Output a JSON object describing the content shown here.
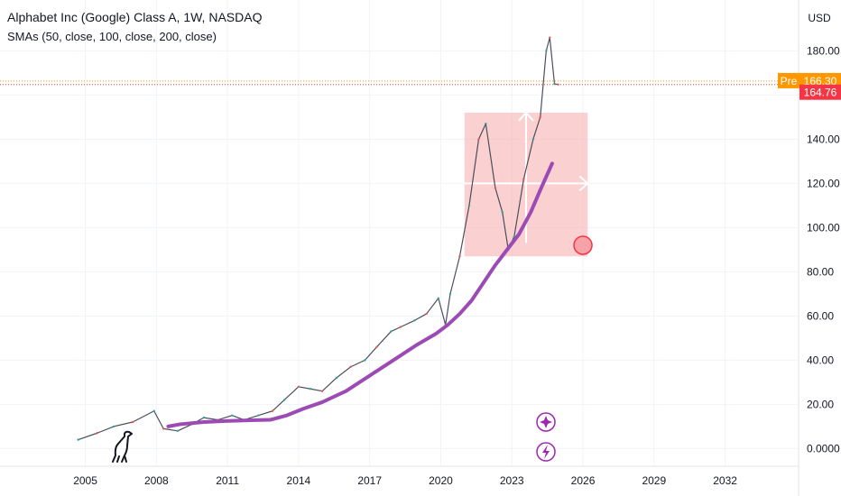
{
  "header": {
    "title": "Alphabet Inc (Google) Class A, 1W, NASDAQ",
    "subtitle": "SMAs (50, close, 100, close, 200, close)"
  },
  "price_axis": {
    "currency": "USD"
  },
  "tags": {
    "pre_label": "Pre",
    "pre_value": "166.30",
    "last_value": "164.76",
    "pre_color": "#ff9800",
    "last_color": "#f23645"
  },
  "icons": [
    "dino-logo-icon",
    "sparkle-event-icon",
    "lightning-event-icon"
  ],
  "colors": {
    "sma": "#9c4bb5",
    "box": "#f7b7b7",
    "up": "#26a69a",
    "down": "#ef5350"
  },
  "chart_data": {
    "type": "line",
    "title": "Alphabet Inc (Google) Class A, 1W, NASDAQ",
    "x_ticks": [
      "2005",
      "2008",
      "2011",
      "2014",
      "2017",
      "2020",
      "2023",
      "2026",
      "2029",
      "2032"
    ],
    "y_ticks": [
      "0.0000",
      "20.00",
      "40.00",
      "60.00",
      "80.00",
      "100.00",
      "120.00",
      "140.00",
      "160.00",
      "180.00"
    ],
    "ylim": [
      -8,
      203
    ],
    "xlim": [
      2001.4,
      2035.1
    ],
    "grid": true,
    "series": [
      {
        "name": "SMAs (50, close, 100, close, 200, close)",
        "color": "#9c4bb5",
        "x": [
          2008.5,
          2009,
          2010,
          2011,
          2012,
          2012.8,
          2013.5,
          2014.2,
          2015,
          2016,
          2017,
          2018,
          2019,
          2019.8,
          2020.3,
          2020.8,
          2021.3,
          2021.8,
          2022.3,
          2022.8,
          2023.3,
          2023.8,
          2024.2,
          2024.7
        ],
        "values": [
          10,
          11,
          12,
          12.5,
          12.8,
          13,
          15,
          18,
          21,
          26,
          33,
          40,
          47,
          52,
          56,
          61,
          67,
          75,
          83,
          90,
          97,
          107,
          117,
          129
        ]
      },
      {
        "name": "Price",
        "color": "#131722",
        "x": [
          2004.7,
          2005.5,
          2006.2,
          2007,
          2007.9,
          2008.3,
          2008.9,
          2009.5,
          2010,
          2010.6,
          2011.2,
          2011.7,
          2012.3,
          2012.9,
          2013.4,
          2014,
          2014.5,
          2015,
          2015.6,
          2016.2,
          2016.8,
          2017.3,
          2017.9,
          2018.3,
          2018.9,
          2019.4,
          2019.9,
          2020.2,
          2020.4,
          2020.8,
          2021.2,
          2021.6,
          2021.9,
          2022.3,
          2022.6,
          2022.85,
          2023.1,
          2023.5,
          2023.9,
          2024.2,
          2024.45,
          2024.6,
          2024.8,
          2024.95
        ],
        "values": [
          4,
          7,
          10,
          12,
          17,
          9,
          8,
          11,
          14,
          13,
          15,
          13,
          15,
          17,
          22,
          28,
          27,
          26,
          32,
          37,
          40,
          46,
          53,
          55,
          58,
          61,
          68,
          56,
          70,
          87,
          110,
          140,
          147,
          118,
          107,
          90,
          96,
          122,
          140,
          150,
          180,
          186,
          165,
          164.76
        ]
      }
    ],
    "annotations": {
      "box": {
        "x": [
          2021.0,
          2026.2
        ],
        "y": [
          87,
          152
        ]
      },
      "arrow_up": {
        "x": 2023.6,
        "y": [
          93,
          152
        ]
      },
      "arrow_right": {
        "x": [
          2021.0,
          2026.2
        ],
        "y": 120
      },
      "circle": {
        "x": 2026.0,
        "y": 92
      },
      "price_lines": [
        166.3,
        164.76
      ]
    }
  }
}
